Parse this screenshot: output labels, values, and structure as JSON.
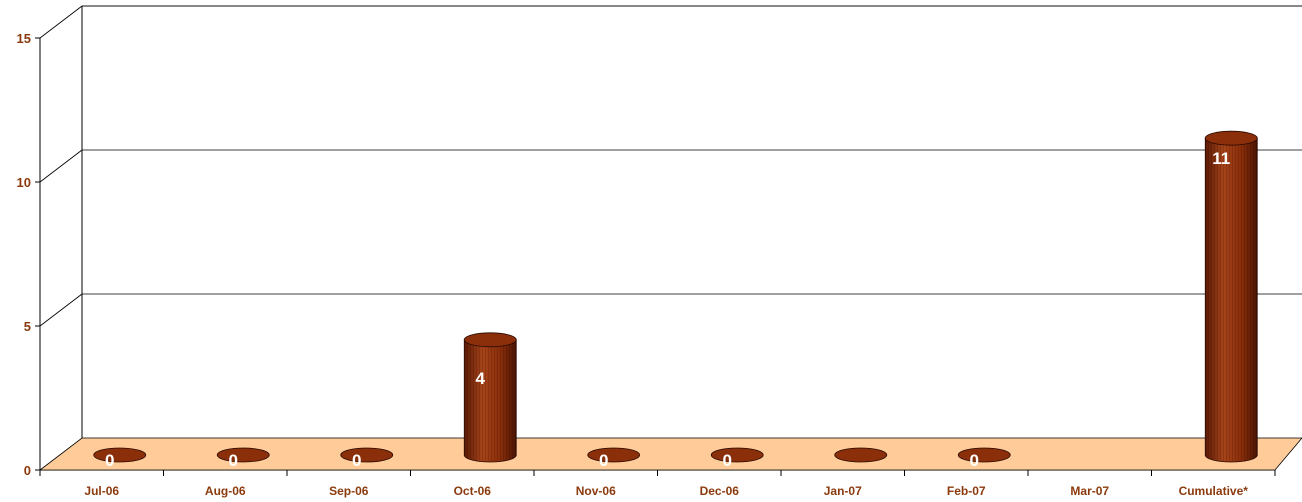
{
  "chart_data": {
    "type": "bar",
    "style": "3d-cylinder",
    "categories": [
      "Jul-06",
      "Aug-06",
      "Sep-06",
      "Oct-06",
      "Nov-06",
      "Dec-06",
      "Jan-07",
      "Feb-07",
      "Mar-07",
      "Cumulative*"
    ],
    "values": [
      0,
      0,
      0,
      4,
      0,
      0,
      0,
      0,
      null,
      11
    ],
    "data_labels": [
      "0",
      "0",
      "0",
      "4",
      "0",
      "0",
      "",
      "0",
      "",
      "11"
    ],
    "y_ticks": [
      "0",
      "5",
      "10",
      "15"
    ],
    "ylim": [
      0,
      15
    ],
    "grid": true,
    "colors": {
      "bar": "#8B2E0A",
      "bar_dark": "#4A1504",
      "floor": "#FFCC99",
      "tick_text": "#8B3A0E",
      "label_text": "#ffffff",
      "grid": "#000000"
    }
  }
}
